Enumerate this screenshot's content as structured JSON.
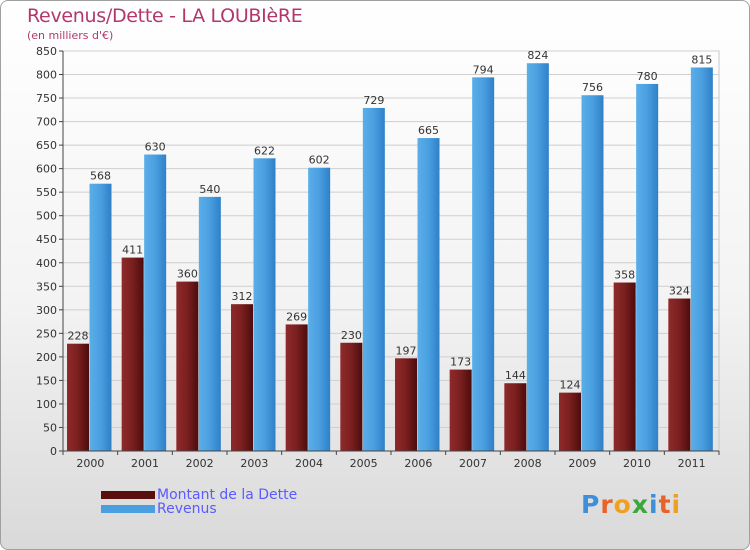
{
  "title": "Revenus/Dette - LA LOUBIèRE",
  "subtitle": "(en milliers d'€)",
  "logo_text": "Proxiti",
  "colors": {
    "dette": "#7a1f1f",
    "revenus": "#4a9fe0",
    "title": "#b3376b",
    "legend_text": "#5a5aff"
  },
  "chart_data": {
    "type": "bar",
    "title": "Revenus/Dette - LA LOUBIèRE",
    "subtitle": "(en milliers d'€)",
    "categories": [
      "2000",
      "2001",
      "2002",
      "2003",
      "2004",
      "2005",
      "2006",
      "2007",
      "2008",
      "2009",
      "2010",
      "2011"
    ],
    "series": [
      {
        "name": "Montant de la Dette",
        "values": [
          228,
          411,
          360,
          312,
          269,
          230,
          197,
          173,
          144,
          124,
          358,
          324
        ]
      },
      {
        "name": "Revenus",
        "values": [
          568,
          630,
          540,
          622,
          602,
          729,
          665,
          794,
          824,
          756,
          780,
          815
        ]
      }
    ],
    "ylim": [
      0,
      850
    ],
    "yticks": [
      0,
      50,
      100,
      150,
      200,
      250,
      300,
      350,
      400,
      450,
      500,
      550,
      600,
      650,
      700,
      750,
      800,
      850
    ],
    "grid": true,
    "legend_position": "bottom-left"
  }
}
